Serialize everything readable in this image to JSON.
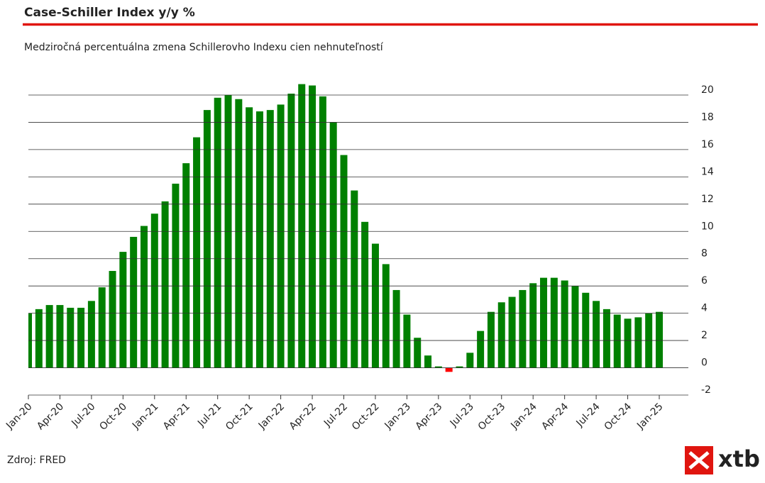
{
  "chart_data": {
    "type": "bar",
    "title": "Case-Schiller Index y/y %",
    "subtitle": "Medziročná percentuálna zmena Schillerovho Indexu cien nehnuteľností",
    "source": "Zdroj: FRED",
    "logo": "xtb",
    "categories": [
      "Jan-20",
      null,
      null,
      "Apr-20",
      null,
      null,
      "Jul-20",
      null,
      null,
      "Oct-20",
      null,
      null,
      "Jan-21",
      null,
      null,
      "Apr-21",
      null,
      null,
      "Jul-21",
      null,
      null,
      "Oct-21",
      null,
      null,
      "Jan-22",
      null,
      null,
      "Apr-22",
      null,
      null,
      "Jul-22",
      null,
      null,
      "Oct-22",
      null,
      null,
      "Jan-23",
      null,
      null,
      "Apr-23",
      null,
      null,
      "Jul-23",
      null,
      null,
      "Oct-23",
      null,
      null,
      "Jan-24",
      null,
      null,
      "Apr-24",
      null,
      null,
      "Jul-24",
      null,
      null,
      "Oct-24",
      null,
      null,
      "Jan-25"
    ],
    "values": [
      4.0,
      4.3,
      4.6,
      4.6,
      4.4,
      4.4,
      4.9,
      5.9,
      7.1,
      8.5,
      9.6,
      10.4,
      11.3,
      12.2,
      13.5,
      15.0,
      16.9,
      18.9,
      19.8,
      20.0,
      19.7,
      19.1,
      18.8,
      18.9,
      19.3,
      20.1,
      20.8,
      20.7,
      19.9,
      18.0,
      15.6,
      13.0,
      10.7,
      9.1,
      7.6,
      5.7,
      3.9,
      2.2,
      0.9,
      0.1,
      -0.3,
      0.1,
      1.1,
      2.7,
      4.1,
      4.8,
      5.2,
      5.7,
      6.2,
      6.6,
      6.6,
      6.4,
      6.0,
      5.5,
      4.9,
      4.3,
      3.9,
      3.6,
      3.7,
      4.0,
      4.1
    ],
    "color": "#008000",
    "negative_color": "#ff0000",
    "ylim": [
      -2,
      21
    ],
    "yticks": [
      -2,
      0,
      2,
      4,
      6,
      8,
      10,
      12,
      14,
      16,
      18,
      20
    ],
    "grid": true
  }
}
